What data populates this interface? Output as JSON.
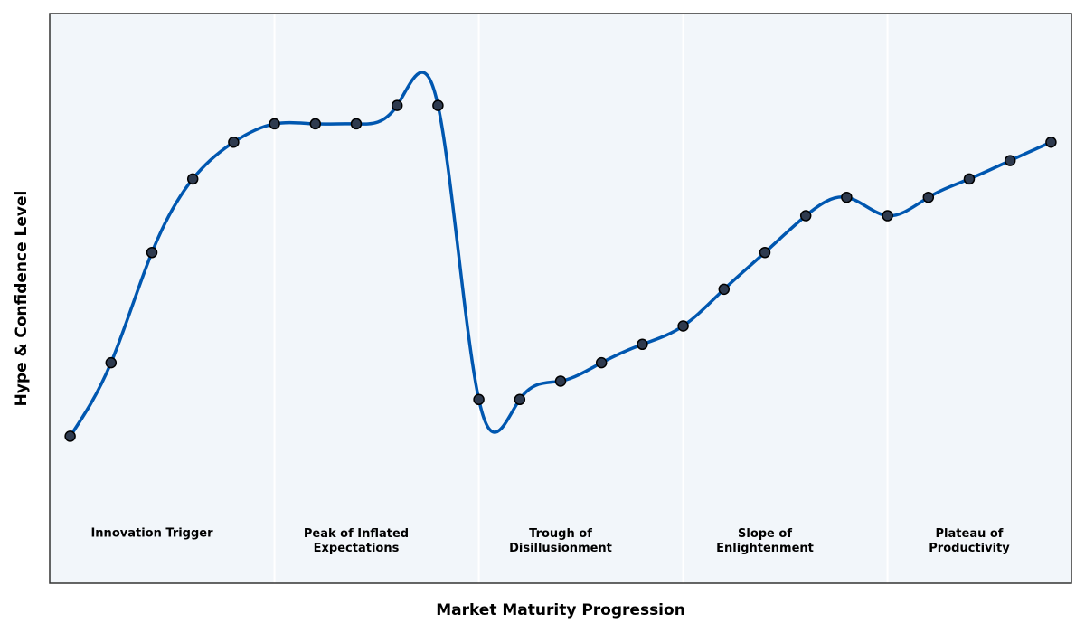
{
  "chart_data": {
    "type": "line",
    "xlabel": "Market Maturity Progression",
    "ylabel": "Hype & Confidence Level",
    "x": [
      0,
      1,
      2,
      3,
      4,
      5,
      6,
      7,
      8,
      9,
      10,
      11,
      12,
      13,
      14,
      15,
      16,
      17,
      18,
      19,
      20,
      21,
      22,
      23,
      24
    ],
    "series": [
      {
        "color": "#0057b0",
        "marker_color": "#2e3a4e",
        "values": [
          8,
          12,
          18,
          22,
          24,
          25,
          25,
          25,
          26,
          26,
          10,
          10,
          11,
          12,
          13,
          14,
          16,
          18,
          20,
          21,
          20,
          21,
          22,
          23,
          24
        ]
      }
    ],
    "xlim": [
      -0.5,
      24.5
    ],
    "ylim": [
      0,
      31
    ],
    "phase_dividers": [
      5,
      10,
      15,
      20
    ],
    "phases": [
      {
        "label": "Innovation Trigger",
        "x": 2
      },
      {
        "label": "Peak of Inflated\nExpectations",
        "x": 7
      },
      {
        "label": "Trough of\nDisillusionment",
        "x": 12
      },
      {
        "label": "Slope of\nEnlightenment",
        "x": 17
      },
      {
        "label": "Plateau of\nProductivity",
        "x": 22
      }
    ],
    "background": "#f2f6fa"
  }
}
